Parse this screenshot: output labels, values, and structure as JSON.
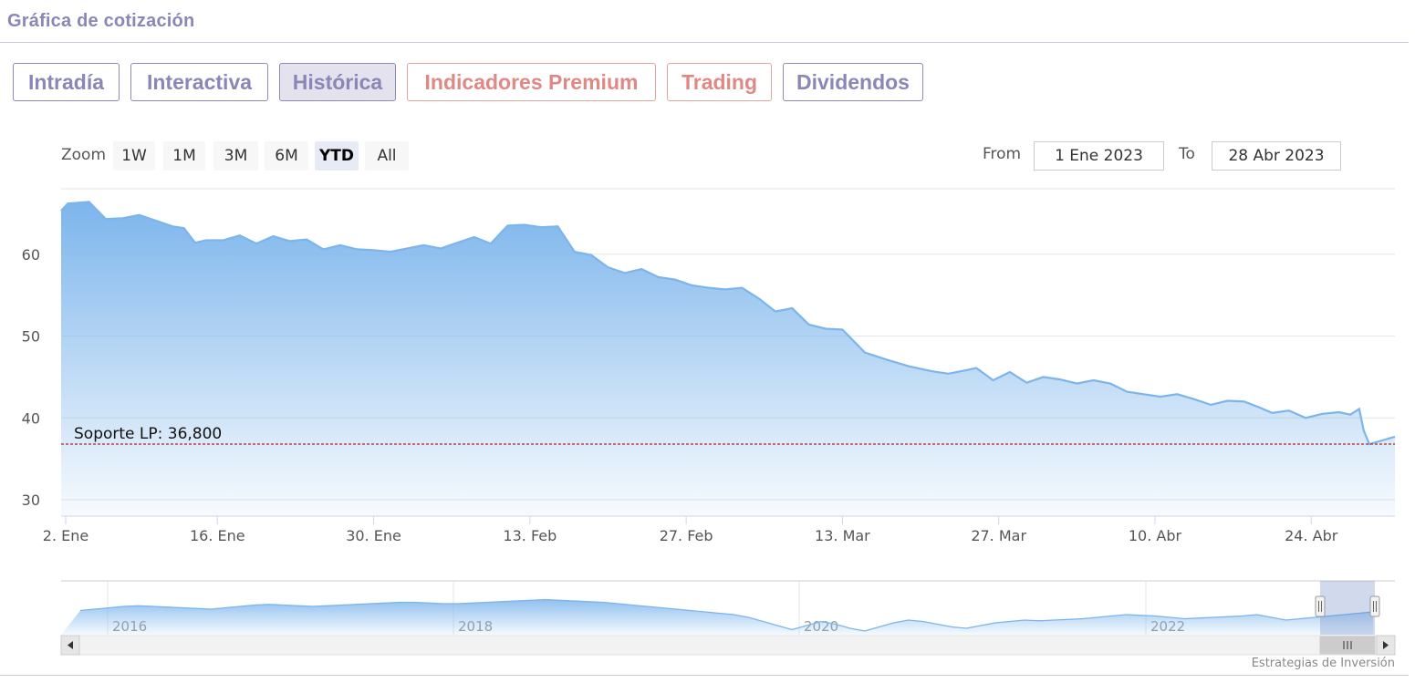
{
  "page": {
    "title": "Gráfica de cotización"
  },
  "tabs": [
    {
      "label": "Intradía",
      "active": false,
      "style": "normal"
    },
    {
      "label": "Interactiva",
      "active": false,
      "style": "normal"
    },
    {
      "label": "Histórica",
      "active": true,
      "style": "normal"
    },
    {
      "label": "Indicadores Premium",
      "active": false,
      "style": "premium"
    },
    {
      "label": "Trading",
      "active": false,
      "style": "premium"
    },
    {
      "label": "Dividendos",
      "active": false,
      "style": "normal"
    }
  ],
  "zoom": {
    "label": "Zoom",
    "buttons": [
      "1W",
      "1M",
      "3M",
      "6M",
      "YTD",
      "All"
    ],
    "selected": "YTD"
  },
  "range": {
    "from_label": "From",
    "from_value": "1 Ene 2023",
    "to_label": "To",
    "to_value": "28 Abr 2023"
  },
  "chart_data": {
    "type": "area",
    "x_ticks": [
      "2. Ene",
      "16. Ene",
      "30. Ene",
      "13. Feb",
      "27. Feb",
      "13. Mar",
      "27. Mar",
      "10. Abr",
      "24. Abr"
    ],
    "y_ticks": [
      30,
      40,
      50,
      60
    ],
    "ylim": [
      28,
      68
    ],
    "xlim_days": [
      0,
      117
    ],
    "grid": true,
    "line_color": "#7cb5ec",
    "series": [
      {
        "values": [
          [
            0,
            65.3
          ],
          [
            0.6,
            66.2
          ],
          [
            2.5,
            66.4
          ],
          [
            4,
            64.3
          ],
          [
            5.5,
            64.4
          ],
          [
            7,
            64.8
          ],
          [
            8.5,
            64.1
          ],
          [
            10,
            63.4
          ],
          [
            11,
            63.2
          ],
          [
            12,
            61.4
          ],
          [
            13,
            61.7
          ],
          [
            14.5,
            61.7
          ],
          [
            16,
            62.3
          ],
          [
            17.5,
            61.3
          ],
          [
            19,
            62.2
          ],
          [
            20.5,
            61.6
          ],
          [
            22,
            61.8
          ],
          [
            23.5,
            60.6
          ],
          [
            25,
            61.1
          ],
          [
            26.5,
            60.6
          ],
          [
            28,
            60.5
          ],
          [
            29.5,
            60.3
          ],
          [
            31,
            60.7
          ],
          [
            32.5,
            61.1
          ],
          [
            34,
            60.7
          ],
          [
            35.5,
            61.4
          ],
          [
            37,
            62.1
          ],
          [
            38.5,
            61.3
          ],
          [
            40,
            63.5
          ],
          [
            41.5,
            63.6
          ],
          [
            43,
            63.3
          ],
          [
            44.5,
            63.4
          ],
          [
            46,
            60.3
          ],
          [
            47.5,
            59.9
          ],
          [
            49,
            58.4
          ],
          [
            50.5,
            57.7
          ],
          [
            52,
            58.2
          ],
          [
            53.5,
            57.2
          ],
          [
            55,
            56.9
          ],
          [
            56.5,
            56.2
          ],
          [
            58,
            55.9
          ],
          [
            59.5,
            55.7
          ],
          [
            61,
            55.9
          ],
          [
            62.5,
            54.6
          ],
          [
            64,
            53.0
          ],
          [
            65.5,
            53.4
          ],
          [
            67,
            51.4
          ],
          [
            68.5,
            50.9
          ],
          [
            70,
            50.8
          ],
          [
            72,
            48.0
          ],
          [
            74,
            47.1
          ],
          [
            76,
            46.3
          ],
          [
            78,
            45.7
          ],
          [
            79.5,
            45.4
          ],
          [
            81,
            45.8
          ],
          [
            82,
            46.1
          ],
          [
            83.5,
            44.6
          ],
          [
            85,
            45.6
          ],
          [
            86.5,
            44.3
          ],
          [
            88,
            45.0
          ],
          [
            89.5,
            44.7
          ],
          [
            91,
            44.2
          ],
          [
            92.5,
            44.6
          ],
          [
            94,
            44.2
          ],
          [
            95.5,
            43.2
          ],
          [
            97,
            42.9
          ],
          [
            98.5,
            42.6
          ],
          [
            100,
            42.9
          ],
          [
            101.5,
            42.3
          ],
          [
            103,
            41.6
          ],
          [
            104.5,
            42.1
          ],
          [
            106,
            42.0
          ],
          [
            107.5,
            41.2
          ],
          [
            108.5,
            40.6
          ],
          [
            110,
            40.9
          ],
          [
            111.5,
            40.0
          ],
          [
            113,
            40.5
          ],
          [
            114.5,
            40.7
          ],
          [
            115.5,
            40.4
          ],
          [
            116.3,
            41.1
          ],
          [
            116.7,
            38.5
          ],
          [
            117.2,
            36.8
          ],
          [
            118.5,
            37.3
          ],
          [
            119.5,
            37.7
          ]
        ]
      }
    ],
    "support_line": {
      "value": 36.8,
      "label": "Soporte LP: 36,800",
      "color": "#b22222"
    }
  },
  "navigator": {
    "year_labels": [
      "2016",
      "2018",
      "2020",
      "2022"
    ],
    "credit": "Estrategias de Inversión"
  }
}
